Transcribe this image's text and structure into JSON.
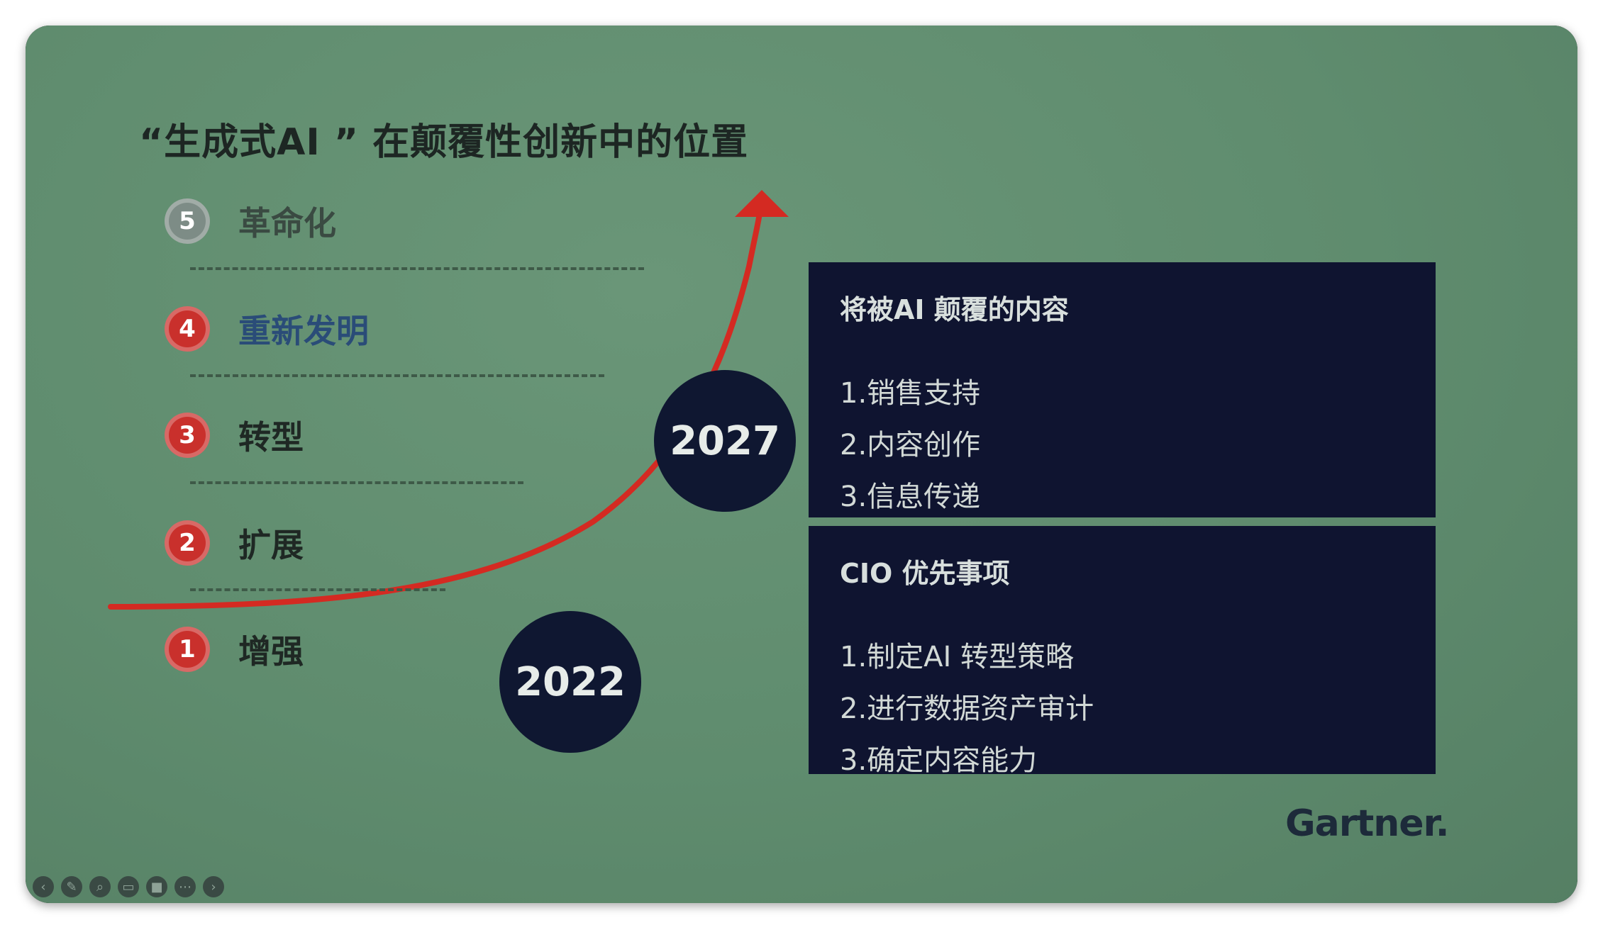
{
  "slide": {
    "title": "“生成式AI  ” 在颠覆性创新中的位置",
    "brand": "Gartner."
  },
  "stages": [
    {
      "number": "5",
      "label": "革命化",
      "color": "#7d8c86",
      "state": "muted"
    },
    {
      "number": "4",
      "label": "重新发明",
      "color": "#c9302c",
      "state": "active"
    },
    {
      "number": "3",
      "label": "转型",
      "color": "#c9302c",
      "state": "normal"
    },
    {
      "number": "2",
      "label": "扩展",
      "color": "#c9302c",
      "state": "normal"
    },
    {
      "number": "1",
      "label": "增强",
      "color": "#c9302c",
      "state": "normal"
    }
  ],
  "years": {
    "early": "2022",
    "late": "2027"
  },
  "panels": {
    "disrupted": {
      "title": "将被AI 颠覆的内容",
      "items": [
        "1.销售支持",
        "2.内容创作",
        "3.信息传递"
      ]
    },
    "cio": {
      "title": "CIO 优先事项",
      "items": [
        "1.制定AI 转型策略",
        "2.进行数据资产审计",
        "3.确定内容能力"
      ]
    }
  },
  "colors": {
    "curve": "#d42a22",
    "panel": "#0f1430",
    "year_circle": "#0f1731"
  },
  "toolbar": {
    "icons": [
      "prev-icon",
      "pen-icon",
      "zoom-icon",
      "subtitles-icon",
      "video-icon",
      "more-icon",
      "next-icon"
    ]
  }
}
